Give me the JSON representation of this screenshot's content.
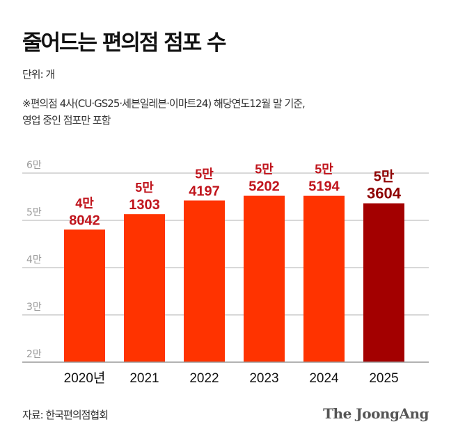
{
  "header": {
    "title": "줄어드는 편의점 점포 수",
    "unit": "단위: 개",
    "note_line1": "※편의점 4사(CU·GS25·세븐일레븐·이마트24) 해당연도12월 말 기준,",
    "note_line2": "영업 중인 점포만 포함"
  },
  "chart_data": {
    "type": "bar",
    "categories": [
      "2020년",
      "2021",
      "2022",
      "2023",
      "2024",
      "2025"
    ],
    "values": [
      48042,
      51303,
      54197,
      55202,
      55194,
      53604
    ],
    "data_labels": [
      [
        "4만",
        "8042"
      ],
      [
        "5만",
        "1303"
      ],
      [
        "5만",
        "4197"
      ],
      [
        "5만",
        "5202"
      ],
      [
        "5만",
        "5194"
      ],
      [
        "5만",
        "3604"
      ]
    ],
    "ylim": [
      20000,
      60000
    ],
    "yticks": [
      20000,
      30000,
      40000,
      50000,
      60000
    ],
    "ytick_labels": [
      "2만",
      "3만",
      "4만",
      "5만",
      "6만"
    ],
    "grid": true,
    "colors": {
      "bar": "#ff3300",
      "bar_highlight": "#a30000",
      "label": "#c0141c",
      "label_highlight": "#8e0000",
      "grid": "#cccccc"
    },
    "highlight_index": 5
  },
  "footer": {
    "source": "자료: 한국편의점협회",
    "logo": "The JoongAng"
  }
}
